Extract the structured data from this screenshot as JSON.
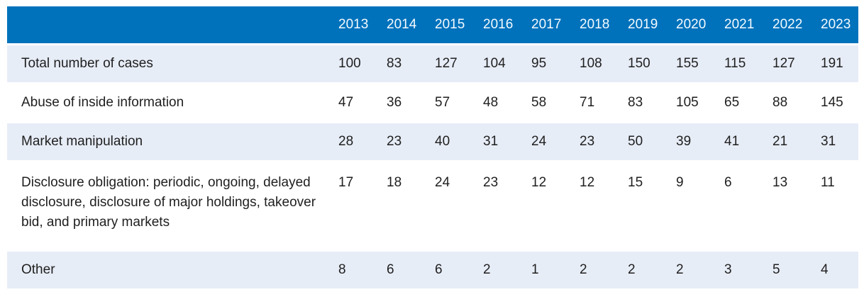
{
  "colors": {
    "header_bg": "#0072BC",
    "header_text": "#F4FAFE",
    "band_bg": "#E7EDF7",
    "row_bg": "#FFFFFF",
    "body_text": "#1F1F1F"
  },
  "chart_data": {
    "type": "table",
    "title": "",
    "row_header_label": "",
    "columns": [
      "2013",
      "2014",
      "2015",
      "2016",
      "2017",
      "2018",
      "2019",
      "2020",
      "2021",
      "2022",
      "2023"
    ],
    "rows": [
      {
        "label": "Total number of cases",
        "values": [
          100,
          83,
          127,
          104,
          95,
          108,
          150,
          155,
          115,
          127,
          191
        ]
      },
      {
        "label": "Abuse of inside information",
        "values": [
          47,
          36,
          57,
          48,
          58,
          71,
          83,
          105,
          65,
          88,
          145
        ]
      },
      {
        "label": "Market manipulation",
        "values": [
          28,
          23,
          40,
          31,
          24,
          23,
          50,
          39,
          41,
          21,
          31
        ]
      },
      {
        "label": "Disclosure obligation: periodic, ongoing, delayed disclosure, disclosure of major holdings, takeover bid, and primary markets",
        "values": [
          17,
          18,
          24,
          23,
          12,
          12,
          15,
          9,
          6,
          13,
          11
        ]
      },
      {
        "label": "Other",
        "values": [
          8,
          6,
          6,
          2,
          1,
          2,
          2,
          2,
          3,
          5,
          4
        ]
      }
    ],
    "layout": {
      "banding": "alternating rows, odd rows light blue",
      "value_alignment": "left",
      "grid": "off"
    }
  }
}
